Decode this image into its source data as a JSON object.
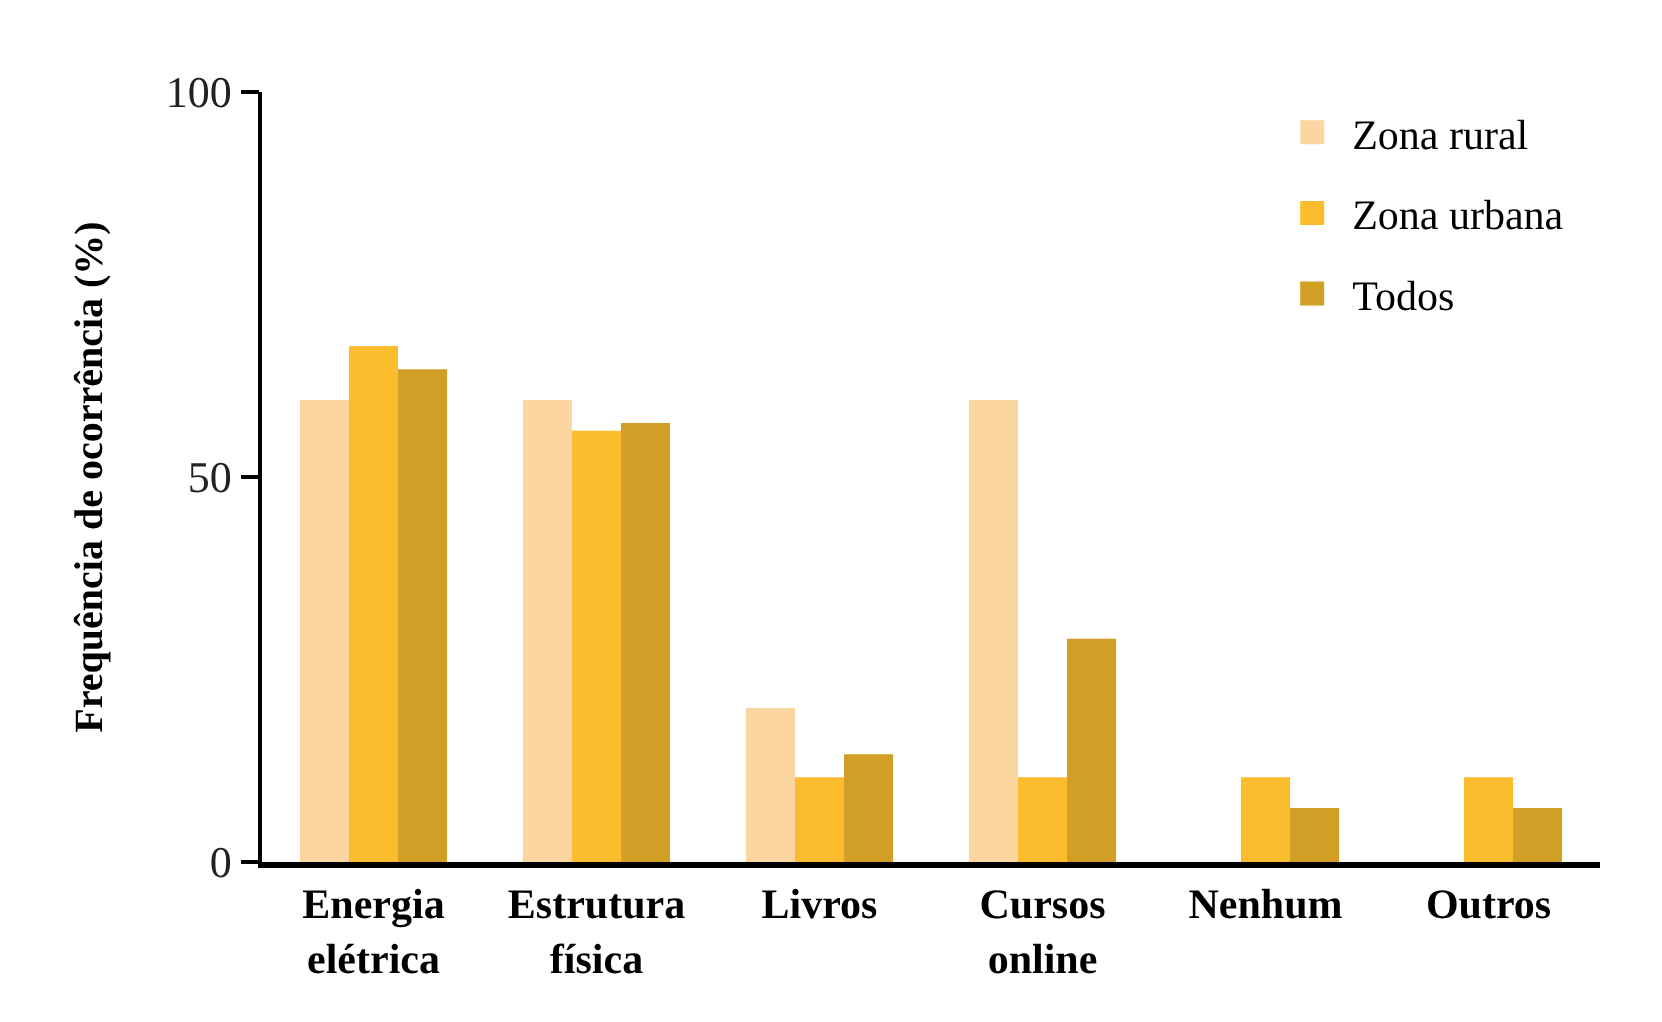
{
  "chart_data": {
    "type": "bar",
    "ylabel": "Frequência de ocorrência (%)",
    "categories": [
      "Energia elétrica",
      "Estrutura física",
      "Livros",
      "Cursos online",
      "Nenhum",
      "Outros"
    ],
    "series": [
      {
        "name": "Zona rural",
        "color": "#fcd6a0",
        "values": [
          60,
          60,
          20,
          60,
          0,
          0
        ]
      },
      {
        "name": "Zona urbana",
        "color": "#fbbd2e",
        "values": [
          67,
          56,
          11,
          11,
          11,
          11
        ]
      },
      {
        "name": "Todos",
        "color": "#d19f25",
        "values": [
          64,
          57,
          14,
          29,
          7,
          7
        ]
      }
    ],
    "ylim": [
      0,
      100
    ],
    "yticks": [
      0,
      50,
      100
    ],
    "grid": false,
    "legend": "top right"
  }
}
